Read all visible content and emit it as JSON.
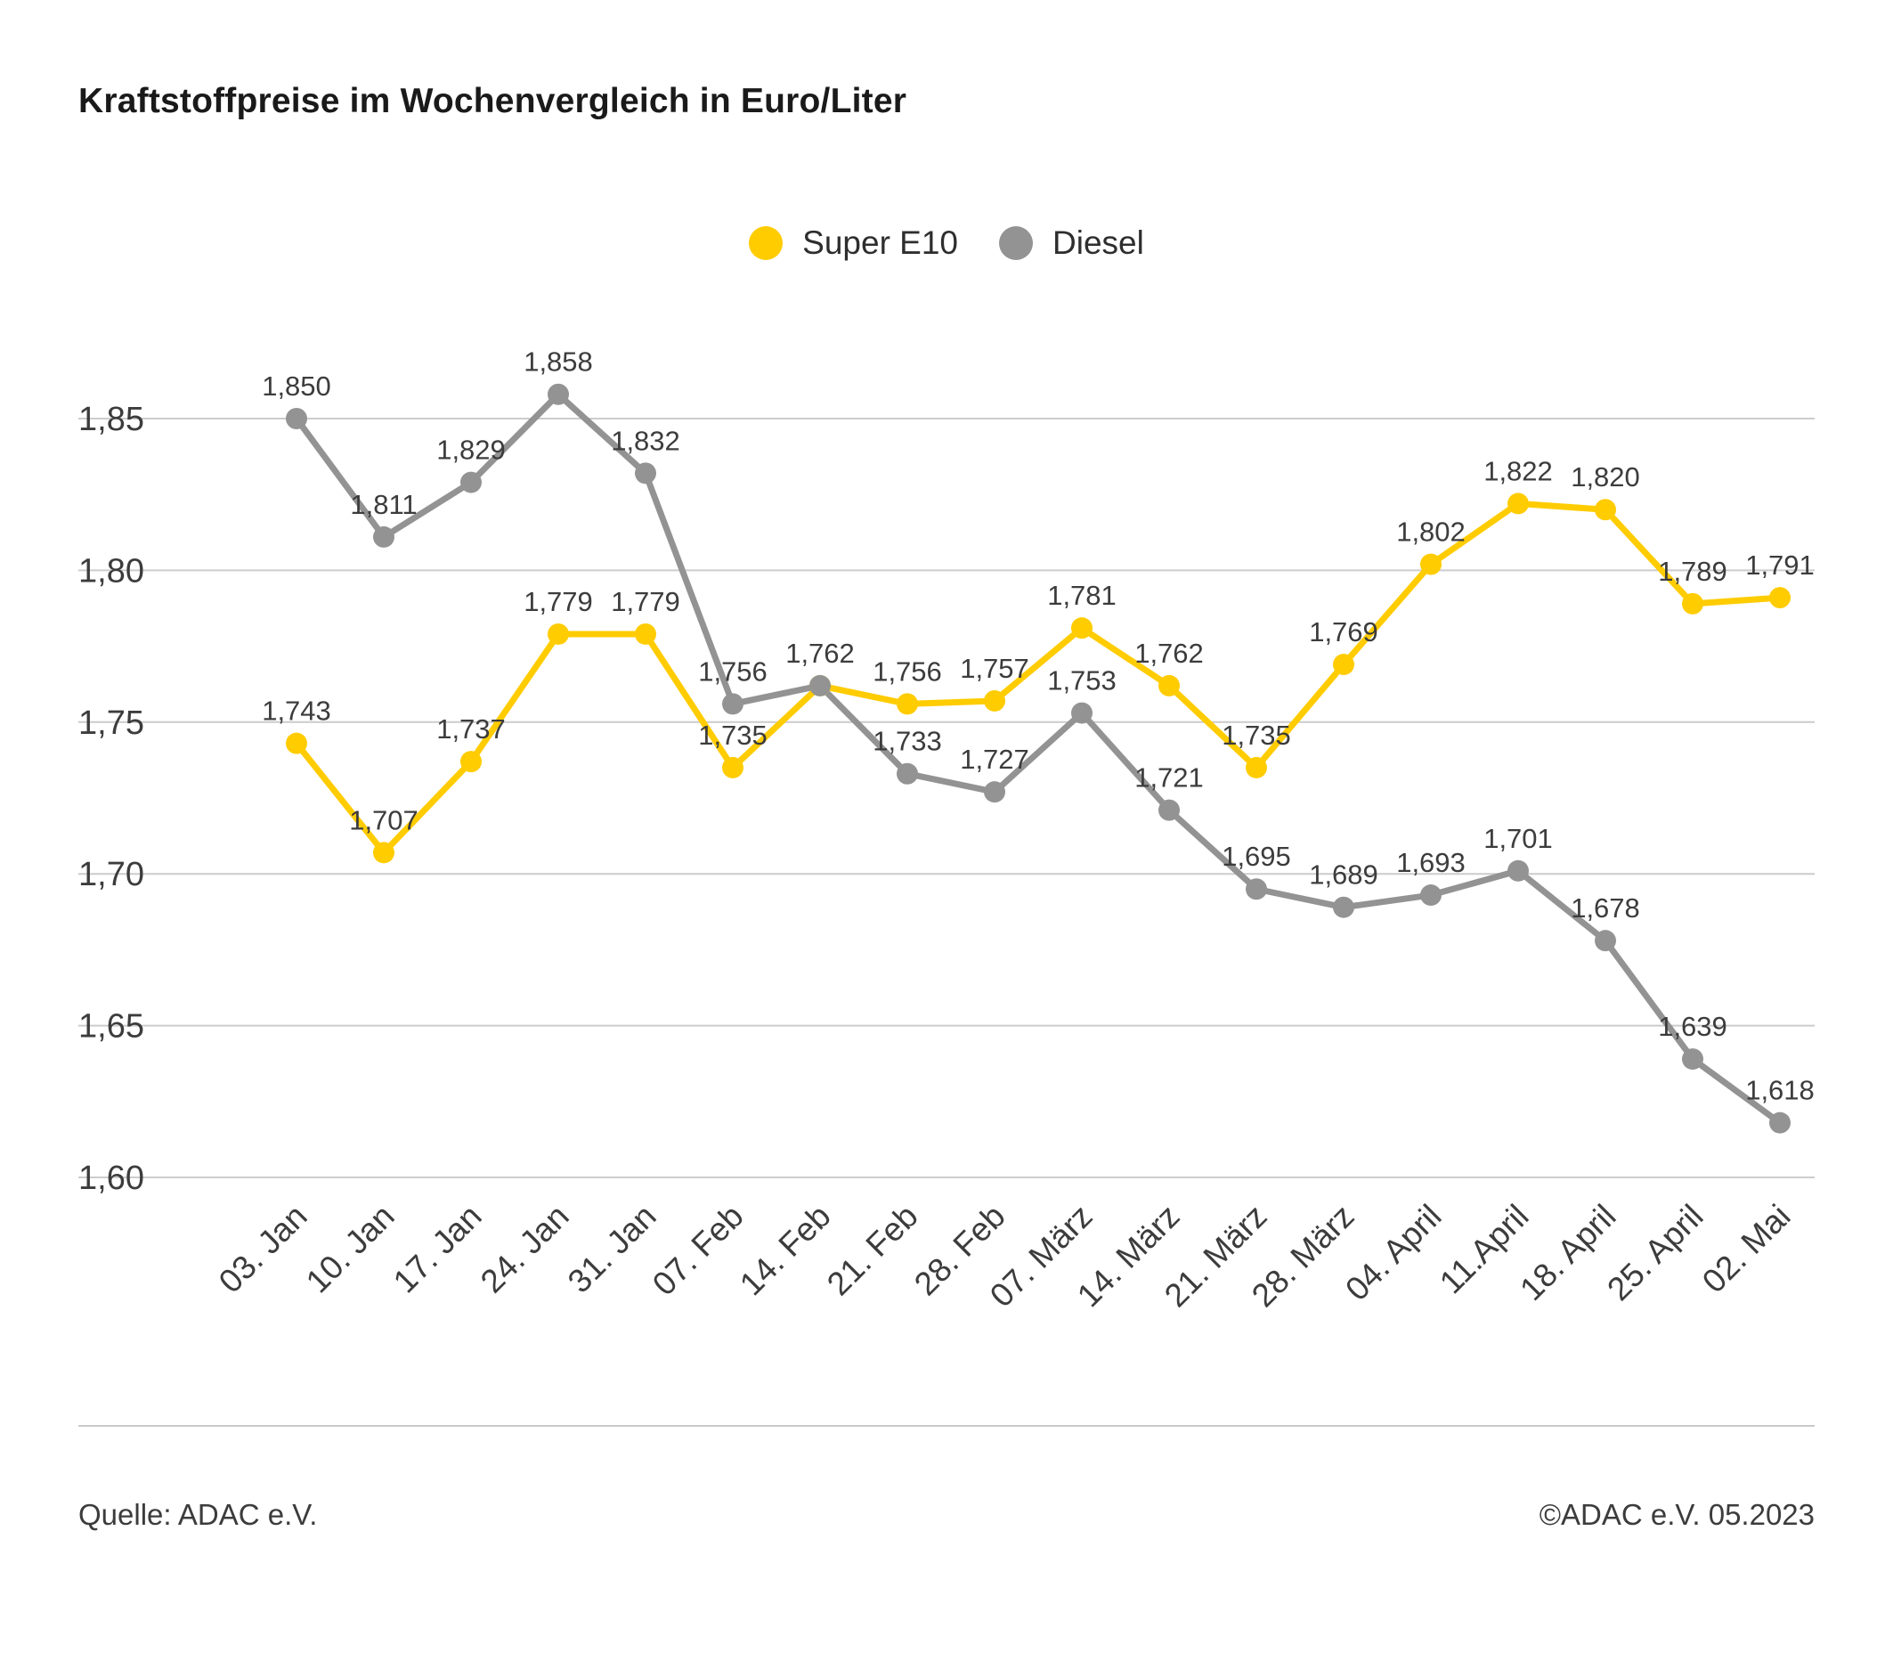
{
  "title": "Kraftstoffpreise im Wochenvergleich in Euro/Liter",
  "legend": [
    {
      "label": "Super E10",
      "color": "#FFCC00"
    },
    {
      "label": "Diesel",
      "color": "#939393"
    }
  ],
  "footer": {
    "source_left": "Quelle: ADAC e.V.",
    "source_right": "©ADAC e.V. 05.2023"
  },
  "colors": {
    "super_e10": "#FFCC00",
    "diesel": "#939393",
    "gridline": "#cccccc",
    "label_text": "#3c3c3c"
  },
  "chart_data": {
    "type": "line",
    "title": "Kraftstoffpreise im Wochenvergleich in Euro/Liter",
    "xlabel": "",
    "ylabel": "Euro/Liter",
    "categories": [
      "03. Jan",
      "10. Jan",
      "17. Jan",
      "24. Jan",
      "31. Jan",
      "07. Feb",
      "14. Feb",
      "21. Feb",
      "28. Feb",
      "07. März",
      "14. März",
      "21. März",
      "28. März",
      "04. April",
      "11.April",
      "18. April",
      "25. April",
      "02. Mai"
    ],
    "series": [
      {
        "name": "Super E10",
        "color": "#FFCC00",
        "values": [
          1.743,
          1.707,
          1.737,
          1.779,
          1.779,
          1.735,
          1.762,
          1.756,
          1.757,
          1.781,
          1.762,
          1.735,
          1.769,
          1.802,
          1.822,
          1.82,
          1.789,
          1.791
        ]
      },
      {
        "name": "Diesel",
        "color": "#939393",
        "values": [
          1.85,
          1.811,
          1.829,
          1.858,
          1.832,
          1.756,
          1.762,
          1.733,
          1.727,
          1.753,
          1.721,
          1.695,
          1.689,
          1.693,
          1.701,
          1.678,
          1.639,
          1.618
        ]
      }
    ],
    "y_ticks": [
      "1,85",
      "1,80",
      "1,75",
      "1,70",
      "1,65",
      "1,60"
    ],
    "y_tick_values": [
      1.85,
      1.8,
      1.75,
      1.7,
      1.65,
      1.6
    ],
    "ylim": [
      1.6,
      1.87
    ],
    "grid": true,
    "decimal_separator": ",",
    "legend_position": "top-center",
    "point_labels_visible": true
  }
}
